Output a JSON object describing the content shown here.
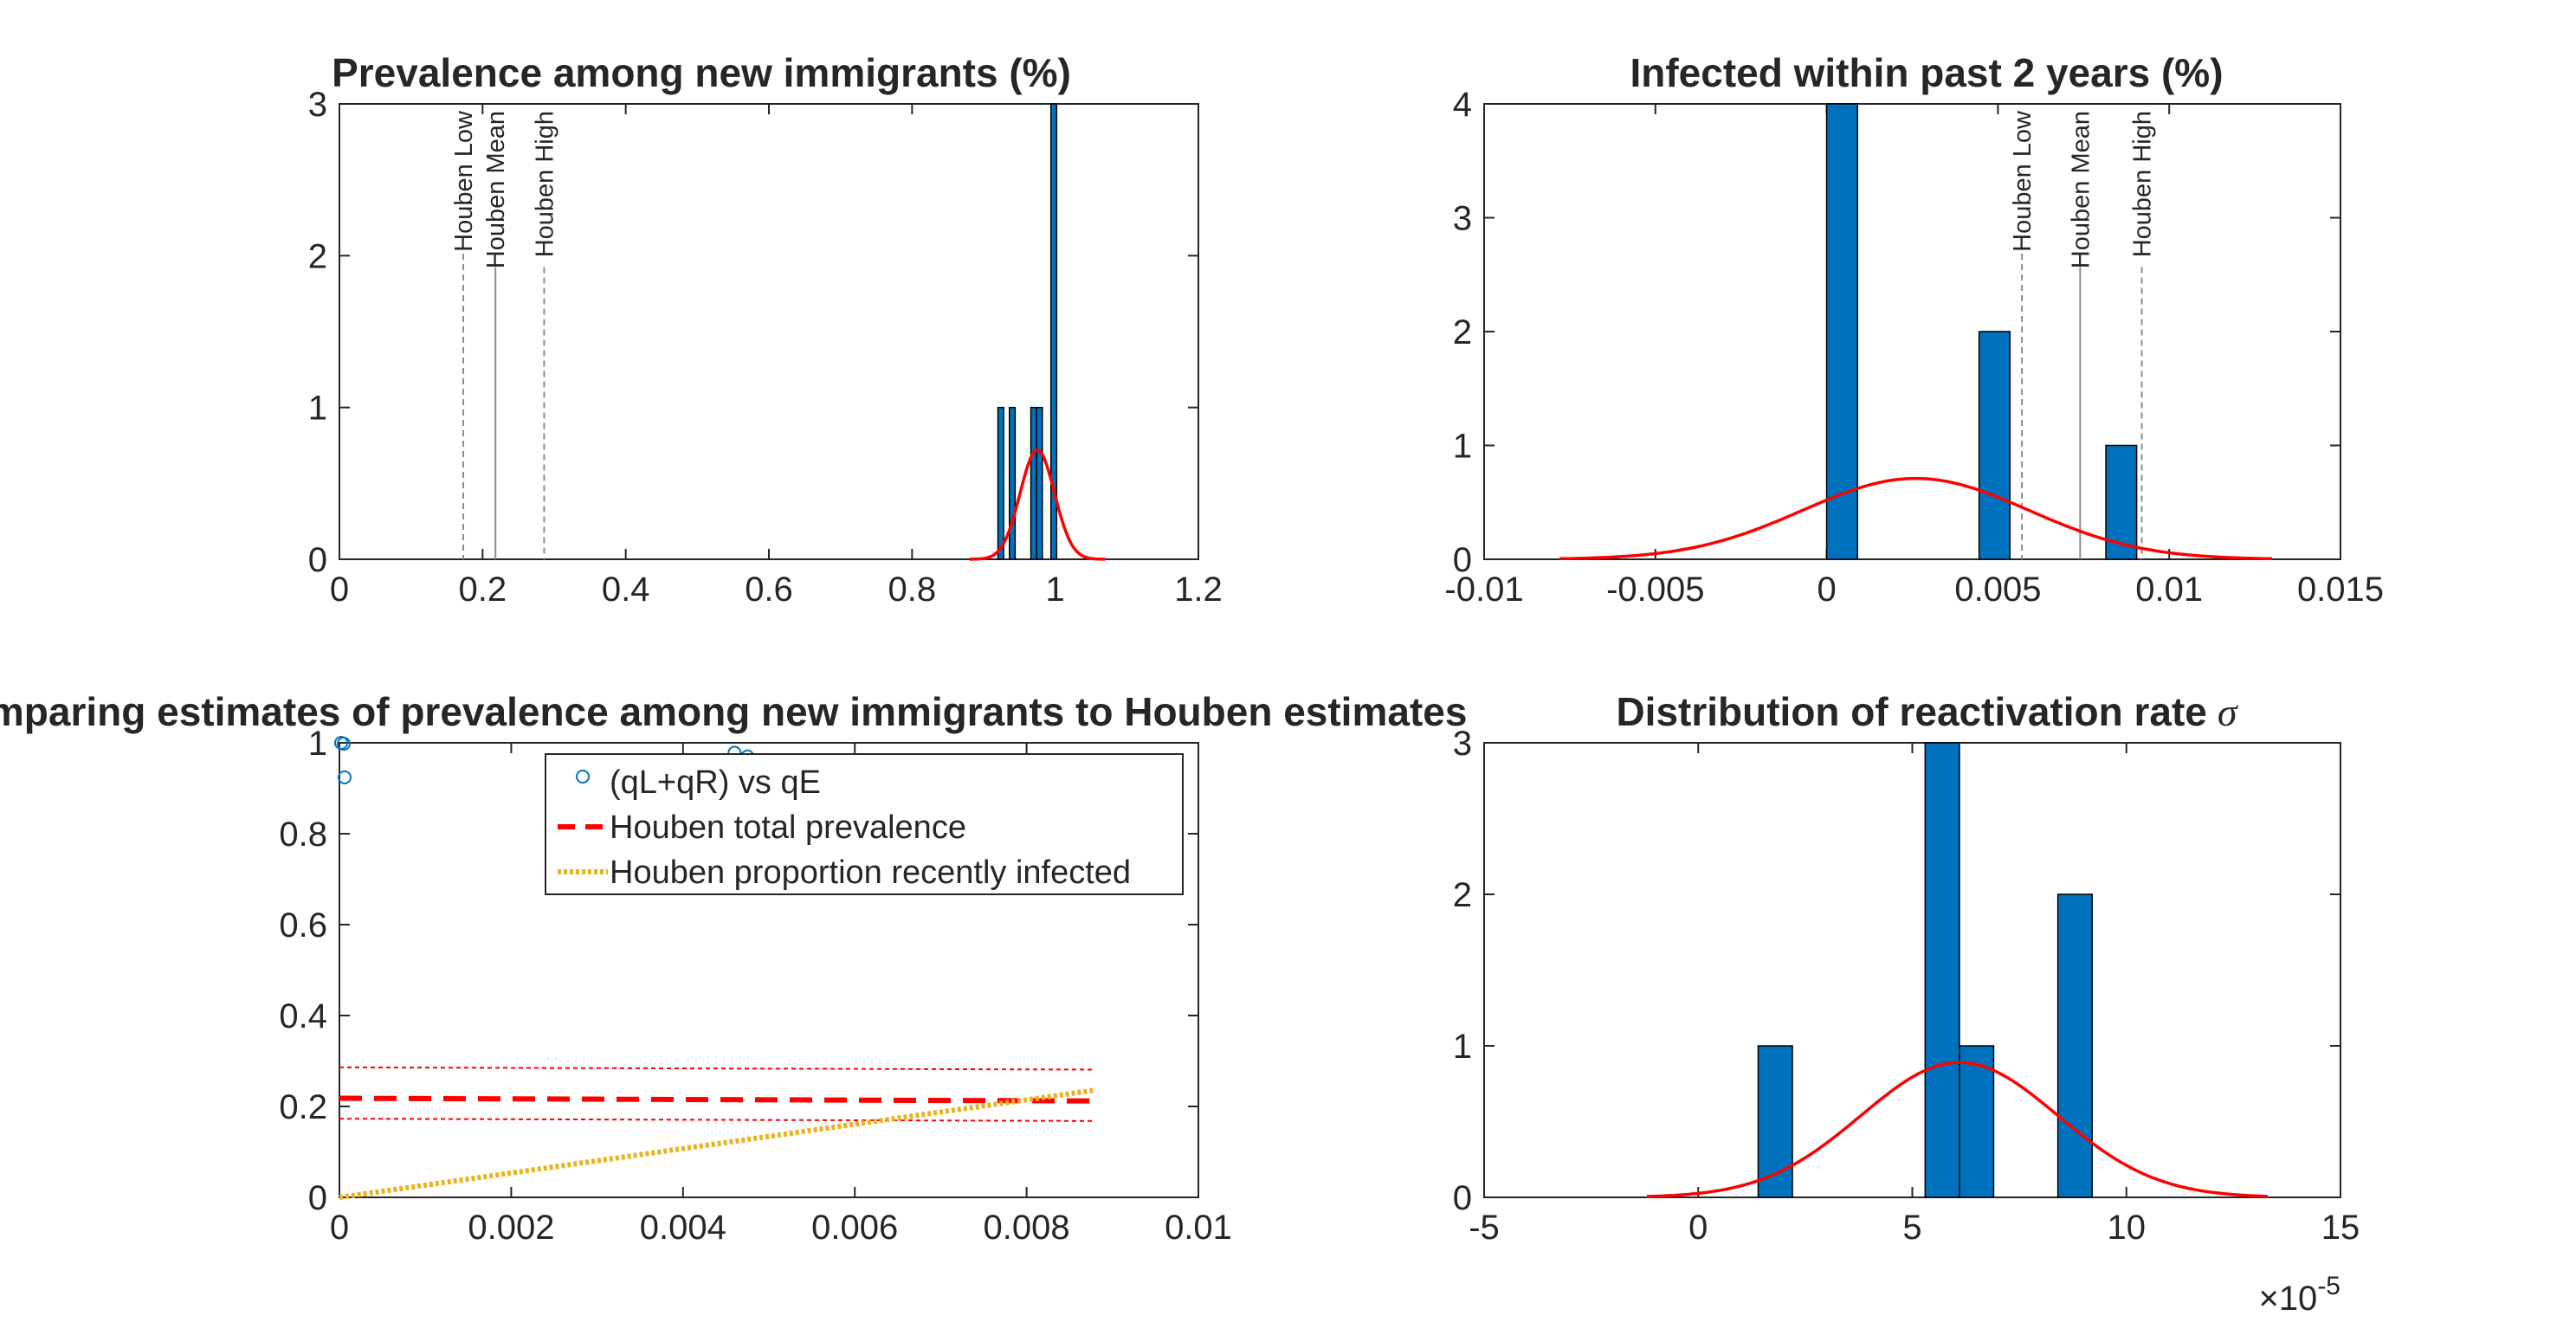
{
  "chart_data": [
    {
      "id": "prev",
      "type": "bar",
      "title": "Prevalence among new immigrants (%)",
      "xlim": [
        0,
        1.2
      ],
      "ylim": [
        0,
        3
      ],
      "xticks": [
        0,
        0.2,
        0.4,
        0.6,
        0.8,
        1,
        1.2
      ],
      "xtick_labels": [
        "0",
        "0.2",
        "0.4",
        "0.6",
        "0.8",
        "1",
        "1.2"
      ],
      "yticks": [
        0,
        1,
        2,
        3
      ],
      "ytick_labels": [
        "0",
        "1",
        "2",
        "3"
      ],
      "bar_width": 0.008,
      "bars": [
        {
          "x": 0.924,
          "h": 1
        },
        {
          "x": 0.94,
          "h": 1
        },
        {
          "x": 0.97,
          "h": 1
        },
        {
          "x": 0.978,
          "h": 1
        },
        {
          "x": 0.998,
          "h": 3
        }
      ],
      "curve": {
        "mu": 0.975,
        "sigma": 0.024,
        "peak": 0.72,
        "from": 0.88,
        "to": 1.07
      },
      "refs": [
        {
          "label": "Houben Low",
          "x": 0.173,
          "dash": true
        },
        {
          "label": "Houben Mean",
          "x": 0.218,
          "dash": false
        },
        {
          "label": "Houben High",
          "x": 0.286,
          "dash": true
        }
      ],
      "colors": {
        "bar": "#0072BD",
        "curve": "#FF0000"
      }
    },
    {
      "id": "recent",
      "type": "bar",
      "title": "Infected within past 2 years (%)",
      "xlim": [
        -0.01,
        0.015
      ],
      "ylim": [
        0,
        4
      ],
      "xticks": [
        -0.01,
        -0.005,
        0,
        0.005,
        0.01,
        0.015
      ],
      "xtick_labels": [
        "-0.01",
        "-0.005",
        "0",
        "0.005",
        "0.01",
        "0.015"
      ],
      "yticks": [
        0,
        1,
        2,
        3,
        4
      ],
      "ytick_labels": [
        "0",
        "1",
        "2",
        "3",
        "4"
      ],
      "bar_width": 0.0009,
      "bars": [
        {
          "x": 0.00045,
          "h": 4
        },
        {
          "x": 0.0049,
          "h": 2
        },
        {
          "x": 0.0086,
          "h": 1
        }
      ],
      "curve": {
        "mu": 0.0026,
        "sigma": 0.0033,
        "peak": 0.71,
        "from": -0.0078,
        "to": 0.013
      },
      "refs": [
        {
          "label": "Houben Low",
          "x": 0.0057,
          "dash": true
        },
        {
          "label": "Houben Mean",
          "x": 0.0074,
          "dash": false
        },
        {
          "label": "Houben High",
          "x": 0.0092,
          "dash": true
        }
      ],
      "colors": {
        "bar": "#0072BD",
        "curve": "#FF0000"
      }
    },
    {
      "id": "compare",
      "type": "line",
      "title": "Comparing estimates of prevalence among new immigrants to Houben estimates",
      "xlim": [
        0,
        0.01
      ],
      "ylim": [
        0,
        1
      ],
      "xticks": [
        0,
        0.002,
        0.004,
        0.006,
        0.008,
        0.01
      ],
      "xtick_labels": [
        "0",
        "0.002",
        "0.004",
        "0.006",
        "0.008",
        "0.01"
      ],
      "yticks": [
        0,
        0.2,
        0.4,
        0.6,
        0.8,
        1
      ],
      "ytick_labels": [
        "0",
        "0.2",
        "0.4",
        "0.6",
        "0.8",
        "1"
      ],
      "scatter": [
        {
          "x": 2e-05,
          "y": 1.0
        },
        {
          "x": 5e-05,
          "y": 0.998
        },
        {
          "x": 6e-05,
          "y": 0.924
        },
        {
          "x": 0.0046,
          "y": 0.978
        },
        {
          "x": 0.00475,
          "y": 0.97
        }
      ],
      "total_prevalence": {
        "x": [
          0,
          0.0088
        ],
        "y": [
          0.218,
          0.212
        ]
      },
      "total_low": {
        "x": [
          0,
          0.0088
        ],
        "y": [
          0.173,
          0.168
        ]
      },
      "total_high": {
        "x": [
          0,
          0.0088
        ],
        "y": [
          0.286,
          0.281
        ]
      },
      "recent": {
        "x": [
          0,
          0.0088
        ],
        "y": [
          0,
          0.236
        ]
      },
      "legend": [
        {
          "label": "(qL+qR) vs qE",
          "style": "circle"
        },
        {
          "label": "Houben total prevalence",
          "style": "dash"
        },
        {
          "label": "Houben proportion recently infected",
          "style": "dot"
        }
      ],
      "legend_position": "top",
      "colors": {
        "scatter": "#0072BD",
        "total": "#FF0000",
        "recent": "#EDB120"
      }
    },
    {
      "id": "sigma",
      "type": "bar",
      "title": "Distribution of reactivation rate",
      "title_symbol": "σ",
      "xlim": [
        -5,
        15
      ],
      "ylim": [
        0,
        3
      ],
      "xticks": [
        -5,
        0,
        5,
        10,
        15
      ],
      "xtick_labels": [
        "-5",
        "0",
        "5",
        "10",
        "15"
      ],
      "yticks": [
        0,
        1,
        2,
        3
      ],
      "ytick_labels": [
        "0",
        "1",
        "2",
        "3"
      ],
      "exponent_base": "×10",
      "exponent_power": "-5",
      "bar_width": 0.8,
      "bars": [
        {
          "x": 1.8,
          "h": 1
        },
        {
          "x": 5.7,
          "h": 3
        },
        {
          "x": 6.5,
          "h": 1
        },
        {
          "x": 8.8,
          "h": 2
        }
      ],
      "curve": {
        "mu": 6.1,
        "sigma": 2.3,
        "peak": 0.89,
        "from": -1.2,
        "to": 13.3
      },
      "colors": {
        "bar": "#0072BD",
        "curve": "#FF0000"
      }
    }
  ]
}
